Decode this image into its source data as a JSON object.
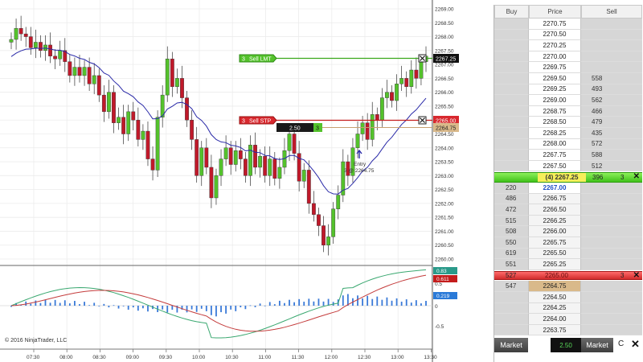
{
  "chart": {
    "copyright": "© 2016 NinjaTrader, LLC",
    "price_labels": [
      "2269.00",
      "2268.50",
      "2268.00",
      "2267.50",
      "2267.00",
      "2266.50",
      "2266.00",
      "2265.50",
      "2265.00",
      "2264.50",
      "2264.00",
      "2263.50",
      "2263.00",
      "2262.50",
      "2262.00",
      "2261.50",
      "2261.00",
      "2260.50",
      "2260.00"
    ],
    "time_labels": [
      "07:30",
      "08:00",
      "08:30",
      "09:00",
      "09:30",
      "10:00",
      "10:30",
      "11:00",
      "11:30",
      "12:00",
      "12:30",
      "13:00",
      "13:30"
    ],
    "osc_labels": [
      "0.5",
      "0",
      "-0.5"
    ],
    "orders": {
      "sell_lmt": {
        "qty": "3",
        "label": "Sell LMT",
        "price": "2267.25"
      },
      "sell_stp": {
        "qty": "3",
        "label": "Sell STP",
        "price": "2265.00"
      },
      "position": {
        "pnl": "2.50",
        "qty": "3",
        "price": "2264.75"
      },
      "entry": {
        "line1": "Entry",
        "line2": "3 @ 2264.75"
      }
    },
    "osc_values": {
      "v1": "0.83",
      "v2": "0.611",
      "v3": "0.219"
    },
    "colors": {
      "up": "#54c22c",
      "down": "#c0192a",
      "ma": "#2a2aa8",
      "green_line": "#3aa81c",
      "red_line": "#c41c1c"
    }
  },
  "dom": {
    "headers": {
      "buy": "Buy",
      "price": "Price",
      "sell": "Sell"
    },
    "ask_rows": [
      {
        "price": "2270.75",
        "sell": ""
      },
      {
        "price": "2270.50",
        "sell": ""
      },
      {
        "price": "2270.25",
        "sell": ""
      },
      {
        "price": "2270.00",
        "sell": ""
      },
      {
        "price": "2269.75",
        "sell": ""
      },
      {
        "price": "2269.50",
        "sell": "558"
      },
      {
        "price": "2269.25",
        "sell": "493"
      },
      {
        "price": "2269.00",
        "sell": "562"
      },
      {
        "price": "2268.75",
        "sell": "466"
      },
      {
        "price": "2268.50",
        "sell": "479"
      },
      {
        "price": "2268.25",
        "sell": "435"
      },
      {
        "price": "2268.00",
        "sell": "572"
      },
      {
        "price": "2267.75",
        "sell": "588"
      },
      {
        "price": "2267.50",
        "sell": "512"
      }
    ],
    "position_bar": {
      "pos": "(4) 2267.25",
      "sell": "396",
      "qty": "3",
      "x": "✕"
    },
    "bid_rows": [
      {
        "buy": "220",
        "price": "2267.00"
      },
      {
        "buy": "486",
        "price": "2266.75"
      },
      {
        "buy": "472",
        "price": "2266.50"
      },
      {
        "buy": "515",
        "price": "2266.25"
      },
      {
        "buy": "508",
        "price": "2266.00"
      },
      {
        "buy": "550",
        "price": "2265.75"
      },
      {
        "buy": "619",
        "price": "2265.50"
      },
      {
        "buy": "551",
        "price": "2265.25"
      }
    ],
    "stop_bar": {
      "buy": "527",
      "price": "2265.00",
      "qty": "3",
      "x": "✕"
    },
    "lower_rows": [
      {
        "buy": "547",
        "price": "2264.75"
      },
      {
        "buy": "",
        "price": "2264.50"
      },
      {
        "buy": "",
        "price": "2264.25"
      },
      {
        "buy": "",
        "price": "2264.00"
      },
      {
        "buy": "",
        "price": "2263.75"
      }
    ],
    "footer": {
      "buy_market": "Market",
      "qty": "2.50",
      "sell_market": "Market",
      "c": "C",
      "x": "✕"
    }
  }
}
